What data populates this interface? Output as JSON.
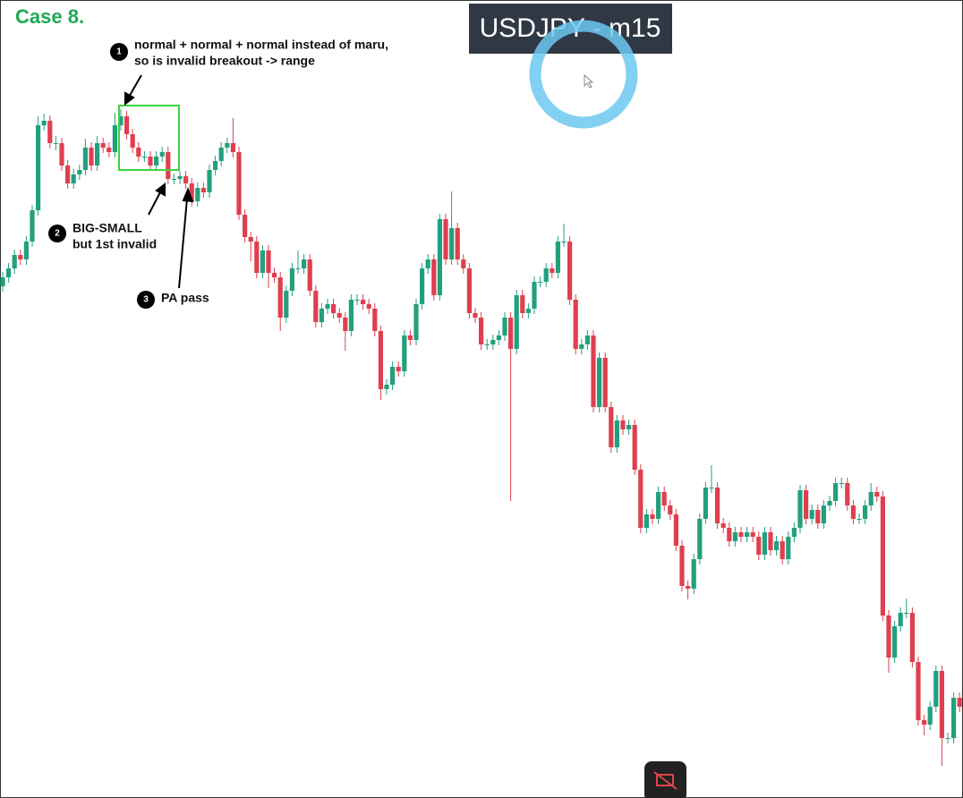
{
  "chart_data": {
    "type": "candlestick",
    "title": "USDJPY - m15",
    "case_label": "Case 8.",
    "annotations": [
      {
        "number": "1",
        "lines": [
          "normal + normal + normal instead of maru,",
          "so is invalid breakout -> range"
        ]
      },
      {
        "number": "2",
        "lines": [
          "BIG-SMALL",
          "but 1st invalid"
        ]
      },
      {
        "number": "3",
        "lines": [
          "PA pass"
        ]
      }
    ],
    "up_color": "#22a07e",
    "down_color": "#df3f4f",
    "ylim": [
      0,
      892
    ],
    "open": [
      572,
      582,
      592,
      607,
      602,
      622,
      657,
      752,
      757,
      732,
      732,
      707,
      687,
      697,
      702,
      727,
      707,
      732,
      727,
      722,
      752,
      762,
      742,
      727,
      717,
      717,
      707,
      717,
      722,
      692,
      692,
      695,
      687,
      667,
      682,
      677,
      702,
      712,
      727,
      732,
      722,
      652,
      627,
      622,
      587,
      612,
      587,
      582,
      537,
      567,
      592,
      592,
      602,
      567,
      532,
      547,
      552,
      542,
      537,
      522,
      557,
      557,
      552,
      547,
      522,
      457,
      462,
      482,
      477,
      517,
      512,
      552,
      592,
      602,
      562,
      647,
      602,
      637,
      602,
      592,
      542,
      537,
      507,
      507,
      512,
      517,
      537,
      502,
      562,
      542,
      547,
      577,
      577,
      592,
      587,
      622,
      622,
      557,
      502,
      507,
      517,
      437,
      492,
      437,
      392,
      422,
      412,
      417,
      367,
      302,
      317,
      312,
      342,
      327,
      317,
      282,
      237,
      234,
      267,
      312,
      347,
      347,
      307,
      302,
      287,
      297,
      292,
      297,
      292,
      272,
      297,
      277,
      287,
      267,
      292,
      302,
      344,
      312,
      322,
      307,
      327,
      332,
      352,
      352,
      327,
      312,
      312,
      327,
      342,
      337,
      204,
      157,
      192,
      207,
      207,
      152,
      87,
      82,
      102,
      142,
      67,
      67,
      112
    ],
    "high": [
      588,
      598,
      613,
      613,
      628,
      663,
      762,
      765,
      763,
      740,
      738,
      713,
      703,
      708,
      737,
      733,
      740,
      738,
      733,
      766,
      770,
      768,
      748,
      733,
      723,
      723,
      723,
      728,
      728,
      698,
      701,
      701,
      693,
      688,
      688,
      708,
      718,
      733,
      738,
      760,
      728,
      658,
      633,
      628,
      618,
      618,
      593,
      588,
      573,
      598,
      612,
      608,
      608,
      573,
      553,
      558,
      558,
      548,
      543,
      563,
      563,
      563,
      558,
      553,
      528,
      468,
      488,
      488,
      523,
      523,
      558,
      598,
      608,
      608,
      653,
      653,
      678,
      643,
      608,
      598,
      548,
      543,
      513,
      518,
      523,
      543,
      543,
      568,
      568,
      553,
      583,
      583,
      598,
      598,
      628,
      642,
      628,
      563,
      513,
      523,
      523,
      498,
      498,
      443,
      428,
      428,
      423,
      423,
      373,
      323,
      323,
      348,
      348,
      333,
      323,
      288,
      243,
      273,
      318,
      353,
      372,
      353,
      313,
      308,
      303,
      303,
      303,
      303,
      298,
      303,
      303,
      293,
      293,
      298,
      308,
      350,
      350,
      328,
      328,
      333,
      338,
      358,
      358,
      358,
      333,
      318,
      333,
      352,
      348,
      343,
      210,
      198,
      213,
      223,
      213,
      158,
      93,
      108,
      148,
      148,
      73,
      118,
      118
    ],
    "low": [
      566,
      576,
      586,
      596,
      596,
      616,
      651,
      746,
      726,
      724,
      701,
      681,
      681,
      691,
      696,
      701,
      701,
      721,
      716,
      716,
      746,
      736,
      721,
      711,
      711,
      701,
      701,
      711,
      686,
      686,
      686,
      681,
      661,
      661,
      671,
      671,
      696,
      706,
      721,
      716,
      646,
      621,
      600,
      581,
      581,
      570,
      576,
      522,
      531,
      561,
      586,
      586,
      561,
      526,
      526,
      541,
      536,
      531,
      500,
      516,
      551,
      546,
      541,
      516,
      445,
      451,
      456,
      471,
      471,
      506,
      506,
      546,
      586,
      556,
      556,
      596,
      596,
      596,
      586,
      536,
      531,
      501,
      501,
      501,
      506,
      511,
      332,
      496,
      536,
      536,
      541,
      571,
      571,
      581,
      581,
      616,
      551,
      496,
      496,
      501,
      431,
      431,
      431,
      386,
      386,
      406,
      406,
      361,
      296,
      296,
      306,
      306,
      321,
      311,
      276,
      231,
      222,
      228,
      261,
      306,
      341,
      301,
      296,
      281,
      281,
      286,
      286,
      286,
      266,
      266,
      271,
      271,
      261,
      261,
      286,
      296,
      306,
      306,
      301,
      301,
      321,
      326,
      346,
      321,
      306,
      306,
      306,
      321,
      331,
      198,
      140,
      151,
      186,
      201,
      146,
      81,
      70,
      76,
      96,
      36,
      61,
      61,
      96
    ],
    "close": [
      582,
      592,
      607,
      602,
      622,
      657,
      752,
      757,
      732,
      732,
      707,
      687,
      697,
      702,
      727,
      707,
      732,
      727,
      722,
      752,
      762,
      742,
      727,
      717,
      717,
      707,
      717,
      722,
      692,
      692,
      695,
      687,
      667,
      682,
      677,
      702,
      712,
      727,
      732,
      722,
      652,
      627,
      622,
      587,
      612,
      587,
      582,
      537,
      567,
      592,
      592,
      602,
      567,
      532,
      547,
      552,
      542,
      537,
      522,
      557,
      557,
      552,
      547,
      522,
      457,
      462,
      482,
      477,
      517,
      512,
      552,
      592,
      602,
      562,
      647,
      602,
      637,
      602,
      592,
      542,
      537,
      507,
      507,
      512,
      517,
      537,
      502,
      562,
      542,
      547,
      577,
      577,
      592,
      587,
      622,
      622,
      557,
      502,
      507,
      517,
      437,
      492,
      437,
      392,
      422,
      412,
      417,
      367,
      302,
      317,
      312,
      342,
      327,
      317,
      282,
      237,
      234,
      267,
      312,
      347,
      347,
      307,
      302,
      287,
      297,
      292,
      297,
      292,
      272,
      297,
      277,
      287,
      267,
      292,
      302,
      344,
      312,
      322,
      307,
      327,
      332,
      352,
      352,
      327,
      312,
      312,
      327,
      342,
      337,
      204,
      157,
      192,
      207,
      207,
      152,
      87,
      82,
      102,
      142,
      67,
      67,
      112,
      102
    ]
  }
}
